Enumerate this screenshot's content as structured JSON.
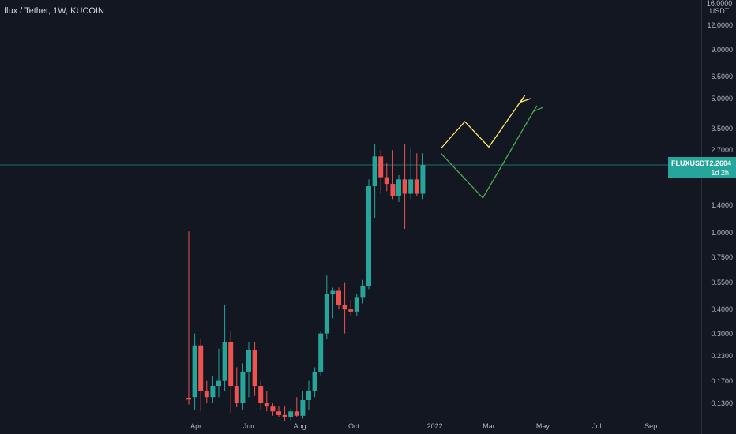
{
  "header": {
    "title": "flux / Tether, 1W, KUCOIN"
  },
  "price_axis": {
    "unit_lines": [
      "16.0000",
      "USDT"
    ],
    "ticks": [
      "12.0000",
      "9.0000",
      "6.5000",
      "5.0000",
      "3.5000",
      "2.7000",
      "1.4000",
      "1.0000",
      "0.7500",
      "0.5500",
      "0.4000",
      "0.3000",
      "0.2300",
      "0.1700",
      "0.1300"
    ]
  },
  "last_price_tag": {
    "symbol": "FLUXUSDT",
    "price": "2.2604",
    "countdown": "1d 2h"
  },
  "colors": {
    "background": "#131722",
    "up": "#26a69a",
    "down": "#ef5350",
    "projection_yellow": "#ffeb6b",
    "projection_green": "#4caf50"
  },
  "chart_data": {
    "type": "candlestick",
    "title": "flux / Tether, 1W, KUCOIN",
    "y_scale": "log",
    "y_unit": "USDT",
    "ylim": [
      0.115,
      16
    ],
    "x_tick_labels": [
      "Apr",
      "Jun",
      "Aug",
      "Oct",
      "2022",
      "Mar",
      "May",
      "Jul",
      "Sep"
    ],
    "last_price": 2.2604,
    "series": [
      {
        "name": "FLUXUSDT",
        "candles": [
          {
            "o": 0.138,
            "h": 1.02,
            "l": 0.128,
            "c": 0.136
          },
          {
            "o": 0.14,
            "h": 0.3,
            "l": 0.12,
            "c": 0.26
          },
          {
            "o": 0.26,
            "h": 0.28,
            "l": 0.118,
            "c": 0.15
          },
          {
            "o": 0.15,
            "h": 0.17,
            "l": 0.13,
            "c": 0.14
          },
          {
            "o": 0.14,
            "h": 0.18,
            "l": 0.13,
            "c": 0.16
          },
          {
            "o": 0.16,
            "h": 0.25,
            "l": 0.14,
            "c": 0.17
          },
          {
            "o": 0.17,
            "h": 0.42,
            "l": 0.15,
            "c": 0.27
          },
          {
            "o": 0.27,
            "h": 0.31,
            "l": 0.115,
            "c": 0.16
          },
          {
            "o": 0.16,
            "h": 0.2,
            "l": 0.124,
            "c": 0.13
          },
          {
            "o": 0.13,
            "h": 0.21,
            "l": 0.12,
            "c": 0.19
          },
          {
            "o": 0.19,
            "h": 0.27,
            "l": 0.14,
            "c": 0.245
          },
          {
            "o": 0.245,
            "h": 0.27,
            "l": 0.142,
            "c": 0.16
          },
          {
            "o": 0.16,
            "h": 0.17,
            "l": 0.12,
            "c": 0.13
          },
          {
            "o": 0.13,
            "h": 0.15,
            "l": 0.118,
            "c": 0.125
          },
          {
            "o": 0.125,
            "h": 0.13,
            "l": 0.112,
            "c": 0.118
          },
          {
            "o": 0.118,
            "h": 0.125,
            "l": 0.11,
            "c": 0.113
          },
          {
            "o": 0.113,
            "h": 0.125,
            "l": 0.105,
            "c": 0.11
          },
          {
            "o": 0.11,
            "h": 0.122,
            "l": 0.105,
            "c": 0.118
          },
          {
            "o": 0.118,
            "h": 0.14,
            "l": 0.11,
            "c": 0.112
          },
          {
            "o": 0.112,
            "h": 0.15,
            "l": 0.108,
            "c": 0.135
          },
          {
            "o": 0.135,
            "h": 0.17,
            "l": 0.12,
            "c": 0.15
          },
          {
            "o": 0.15,
            "h": 0.2,
            "l": 0.14,
            "c": 0.19
          },
          {
            "o": 0.19,
            "h": 0.31,
            "l": 0.18,
            "c": 0.3
          },
          {
            "o": 0.3,
            "h": 0.6,
            "l": 0.28,
            "c": 0.48
          },
          {
            "o": 0.48,
            "h": 0.52,
            "l": 0.36,
            "c": 0.5
          },
          {
            "o": 0.5,
            "h": 0.52,
            "l": 0.4,
            "c": 0.42
          },
          {
            "o": 0.42,
            "h": 0.55,
            "l": 0.3,
            "c": 0.4
          },
          {
            "o": 0.4,
            "h": 0.45,
            "l": 0.37,
            "c": 0.39
          },
          {
            "o": 0.39,
            "h": 0.48,
            "l": 0.37,
            "c": 0.46
          },
          {
            "o": 0.46,
            "h": 0.57,
            "l": 0.43,
            "c": 0.53
          },
          {
            "o": 0.53,
            "h": 1.9,
            "l": 0.51,
            "c": 1.75
          },
          {
            "o": 1.75,
            "h": 2.9,
            "l": 1.2,
            "c": 2.5
          },
          {
            "o": 2.5,
            "h": 2.7,
            "l": 1.6,
            "c": 1.95
          },
          {
            "o": 1.95,
            "h": 2.3,
            "l": 1.65,
            "c": 1.8
          },
          {
            "o": 1.8,
            "h": 2.7,
            "l": 1.5,
            "c": 1.55
          },
          {
            "o": 1.55,
            "h": 2.0,
            "l": 1.45,
            "c": 1.9
          },
          {
            "o": 1.9,
            "h": 2.9,
            "l": 1.05,
            "c": 1.6
          },
          {
            "o": 1.6,
            "h": 2.8,
            "l": 1.5,
            "c": 1.9
          },
          {
            "o": 1.9,
            "h": 2.6,
            "l": 1.55,
            "c": 1.6
          },
          {
            "o": 1.6,
            "h": 2.6,
            "l": 1.5,
            "c": 2.26
          }
        ]
      }
    ],
    "projections": [
      {
        "color": "yellow",
        "path": [
          [
            42,
            2.75
          ],
          [
            46,
            3.8
          ],
          [
            50,
            2.8
          ],
          [
            56,
            5.2
          ],
          [
            55.3,
            4.8
          ],
          [
            57,
            5.0
          ]
        ]
      },
      {
        "color": "green",
        "path": [
          [
            42,
            2.6
          ],
          [
            49,
            1.52
          ],
          [
            58,
            4.6
          ],
          [
            57.5,
            4.3
          ],
          [
            59,
            4.5
          ]
        ]
      }
    ]
  }
}
